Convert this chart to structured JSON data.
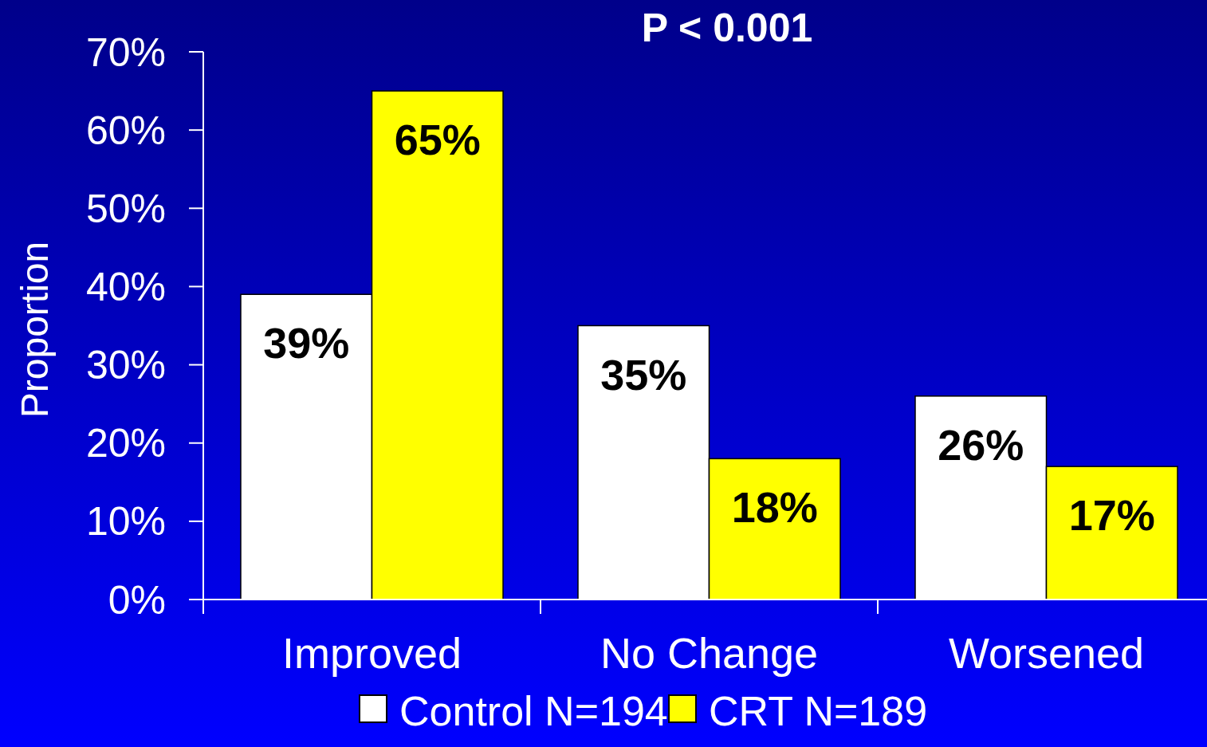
{
  "chart_data": {
    "type": "bar",
    "title": "P < 0.001",
    "ylabel": "Proportion",
    "categories": [
      "Improved",
      "No Change",
      "Worsened"
    ],
    "series": [
      {
        "name": "Control N=194",
        "color": "#ffffff",
        "values": [
          39,
          35,
          26
        ],
        "value_labels": [
          "39%",
          "35%",
          "26%"
        ]
      },
      {
        "name": "CRT N=189",
        "color": "#ffff00",
        "values": [
          65,
          18,
          17
        ],
        "value_labels": [
          "65%",
          "18%",
          "17%"
        ]
      }
    ],
    "ylim": [
      0,
      70
    ],
    "yticks": [
      {
        "value": 0,
        "label": "0%"
      },
      {
        "value": 10,
        "label": "10%"
      },
      {
        "value": 20,
        "label": "20%"
      },
      {
        "value": 30,
        "label": "30%"
      },
      {
        "value": 40,
        "label": "40%"
      },
      {
        "value": 50,
        "label": "50%"
      },
      {
        "value": 60,
        "label": "60%"
      },
      {
        "value": 70,
        "label": "70%"
      }
    ],
    "grid": false,
    "legend": "bottom"
  }
}
